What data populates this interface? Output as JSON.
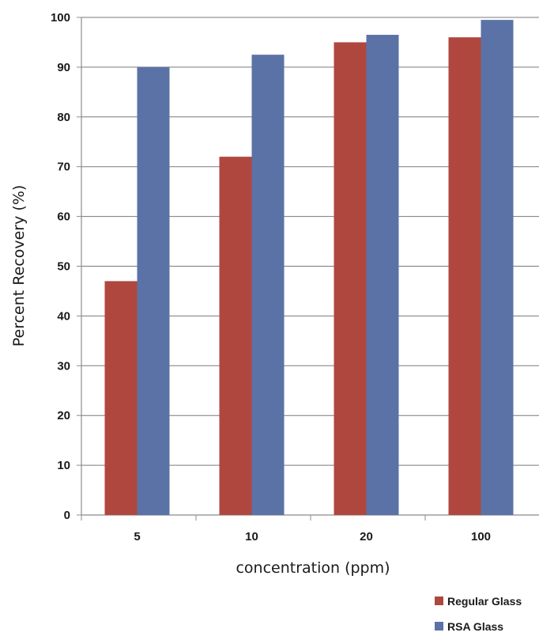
{
  "chart_data": {
    "type": "bar",
    "title": "",
    "xlabel": "concentration (ppm)",
    "ylabel": "Percent Recovery (%)",
    "categories": [
      "5",
      "10",
      "20",
      "100"
    ],
    "ylim": [
      0,
      100
    ],
    "yticks": [
      0,
      10,
      20,
      30,
      40,
      50,
      60,
      70,
      80,
      90,
      100
    ],
    "grid": true,
    "legend_position": "bottom-right",
    "series": [
      {
        "name": "Regular Glass",
        "color": "#b0473f",
        "values": [
          47,
          72,
          95,
          96
        ]
      },
      {
        "name": "RSA Glass",
        "color": "#5b72a7",
        "values": [
          90,
          92.5,
          96.5,
          99.5
        ]
      }
    ]
  }
}
